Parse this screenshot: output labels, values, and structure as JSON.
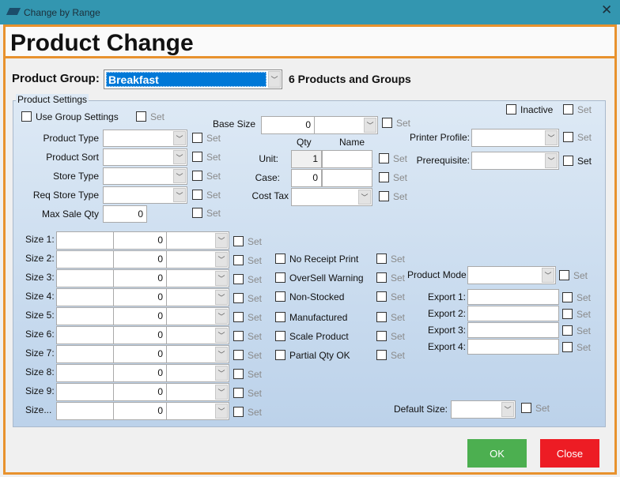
{
  "window": {
    "title": "Change by Range",
    "close_icon": "close-icon"
  },
  "header": {
    "title": "Product Change"
  },
  "product_group": {
    "label": "Product Group:",
    "value": "Breakfast",
    "count_text": "6 Products and Groups"
  },
  "settings": {
    "legend": "Product Settings",
    "set_label": "Set",
    "use_group_settings": "Use Group Settings",
    "inactive": "Inactive",
    "left_fields": [
      "Product Type",
      "Product Sort",
      "Store Type",
      "Req Store Type"
    ],
    "max_sale_qty": {
      "label": "Max Sale Qty",
      "value": "0"
    },
    "base_size": {
      "label": "Base Size",
      "value": "0"
    },
    "qty_header": "Qty",
    "name_header": "Name",
    "unit": {
      "label": "Unit:",
      "qty": "1",
      "name": ""
    },
    "case": {
      "label": "Case:",
      "qty": "0",
      "name": ""
    },
    "cost_tax": {
      "label": "Cost Tax"
    },
    "printer_profile": {
      "label": "Printer Profile:"
    },
    "prerequisite": {
      "label": "Prerequisite:"
    },
    "sizes": [
      {
        "label": "Size 1:",
        "value": "0"
      },
      {
        "label": "Size 2:",
        "value": "0"
      },
      {
        "label": "Size 3:",
        "value": "0"
      },
      {
        "label": "Size 4:",
        "value": "0"
      },
      {
        "label": "Size 5:",
        "value": "0"
      },
      {
        "label": "Size 6:",
        "value": "0"
      },
      {
        "label": "Size 7:",
        "value": "0"
      },
      {
        "label": "Size 8:",
        "value": "0"
      },
      {
        "label": "Size 9:",
        "value": "0"
      },
      {
        "label": "Size...",
        "value": "0"
      }
    ],
    "flags": [
      "No Receipt Print",
      "OverSell Warning",
      "Non-Stocked",
      "Manufactured",
      "Scale Product",
      "Partial Qty OK"
    ],
    "product_mode": {
      "label": "Product Mode"
    },
    "exports": [
      "Export 1:",
      "Export 2:",
      "Export 3:",
      "Export 4:"
    ],
    "default_size": {
      "label": "Default Size:"
    }
  },
  "buttons": {
    "ok": "OK",
    "close": "Close"
  },
  "colors": {
    "ok": "#4caf50",
    "close": "#ed1c24",
    "accent": "#e8922e",
    "selection": "#0078d7"
  }
}
